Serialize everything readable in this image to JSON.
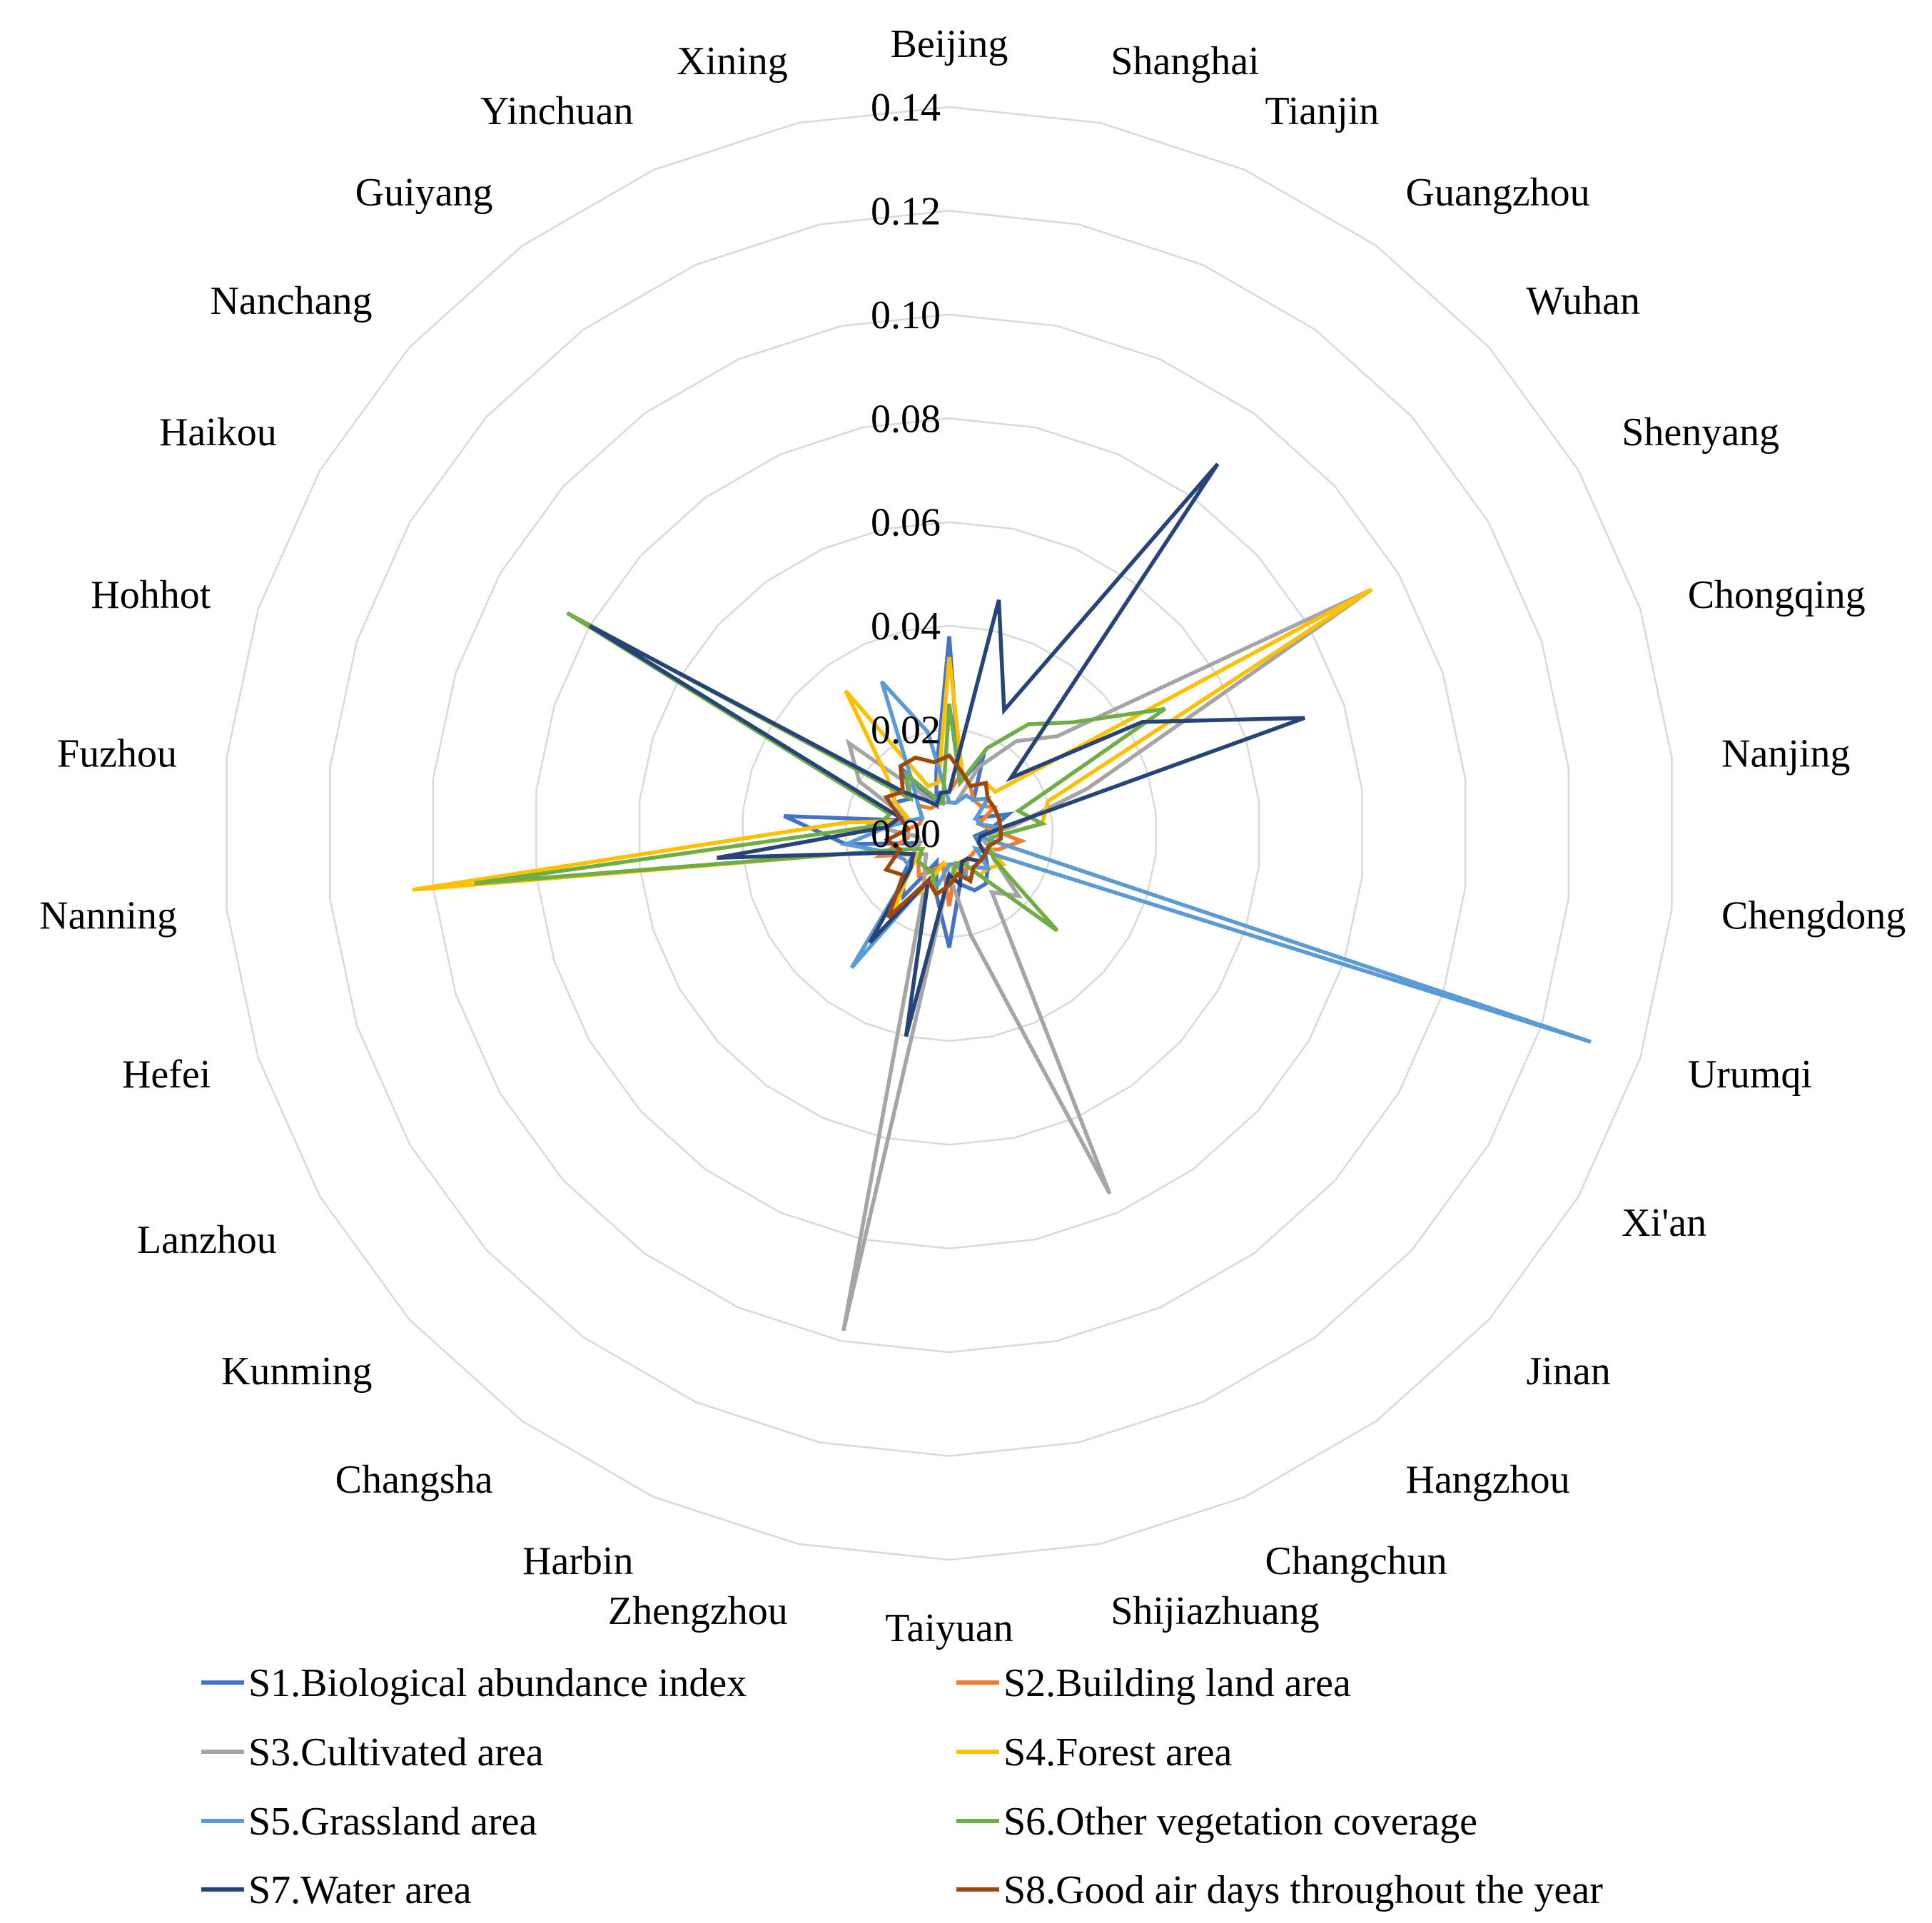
{
  "chart_data": {
    "type": "radar",
    "title": "",
    "r_range": [
      0,
      0.14
    ],
    "r_ticks": [
      "0.00",
      "0.02",
      "0.04",
      "0.06",
      "0.08",
      "0.10",
      "0.12",
      "0.14"
    ],
    "grid": true,
    "legend_position": "bottom",
    "categories": [
      "Beijing",
      "Shanghai",
      "Tianjin",
      "Guangzhou",
      "Wuhan",
      "Shenyang",
      "Chongqing",
      "Nanjing",
      "Chengdong",
      "Urumqi",
      "Xi'an",
      "Jinan",
      "Hangzhou",
      "Changchun",
      "Shijiazhuang",
      "Taiyuan",
      "Zhengzhou",
      "Harbin",
      "Changsha",
      "Kunming",
      "Lanzhou",
      "Hefei",
      "Nanning",
      "Fuzhou",
      "Hohhot",
      "Haikou",
      "Nanchang",
      "Guiyang",
      "Yinchuan",
      "Xining"
    ],
    "series": [
      {
        "name": "S1.Biological abundance index",
        "color": "#4472C4",
        "values": [
          0.038,
          0.01,
          0.016,
          0.008,
          0.01,
          0.006,
          0.012,
          0.008,
          0.005,
          0.006,
          0.008,
          0.01,
          0.012,
          0.012,
          0.01,
          0.022,
          0.012,
          0.006,
          0.015,
          0.012,
          0.008,
          0.006,
          0.02,
          0.032,
          0.008,
          0.012,
          0.01,
          0.015,
          0.006,
          0.012
        ]
      },
      {
        "name": "S2.Building land area",
        "color": "#ED7D31",
        "values": [
          0.008,
          0.012,
          0.01,
          0.008,
          0.008,
          0.01,
          0.006,
          0.008,
          0.014,
          0.01,
          0.006,
          0.006,
          0.006,
          0.008,
          0.006,
          0.014,
          0.006,
          0.008,
          0.01,
          0.008,
          0.008,
          0.014,
          0.008,
          0.008,
          0.006,
          0.006,
          0.008,
          0.006,
          0.006,
          0.008
        ]
      },
      {
        "name": "S3.Cultivated area",
        "color": "#A5A5A5",
        "values": [
          0.006,
          0.006,
          0.014,
          0.022,
          0.028,
          0.094,
          0.028,
          0.012,
          0.006,
          0.008,
          0.01,
          0.018,
          0.014,
          0.076,
          0.02,
          0.008,
          0.098,
          0.012,
          0.008,
          0.006,
          0.008,
          0.006,
          0.006,
          0.016,
          0.008,
          0.02,
          0.026,
          0.01,
          0.006,
          0.006
        ]
      },
      {
        "name": "S4.Forest area",
        "color": "#FFC000",
        "values": [
          0.034,
          0.012,
          0.01,
          0.012,
          0.012,
          0.094,
          0.02,
          0.018,
          0.008,
          0.008,
          0.012,
          0.01,
          0.01,
          0.006,
          0.008,
          0.006,
          0.006,
          0.012,
          0.018,
          0.01,
          0.006,
          0.01,
          0.104,
          0.02,
          0.008,
          0.012,
          0.016,
          0.034,
          0.01,
          0.01
        ]
      },
      {
        "name": "S5.Grassland area",
        "color": "#5B9BD5",
        "values": [
          0.006,
          0.006,
          0.008,
          0.008,
          0.01,
          0.006,
          0.006,
          0.01,
          0.006,
          0.13,
          0.006,
          0.01,
          0.008,
          0.01,
          0.006,
          0.006,
          0.01,
          0.01,
          0.032,
          0.01,
          0.01,
          0.012,
          0.02,
          0.012,
          0.008,
          0.006,
          0.008,
          0.012,
          0.032,
          0.02
        ]
      },
      {
        "name": "S6.Other vegetation coverage",
        "color": "#70AD47",
        "values": [
          0.025,
          0.01,
          0.018,
          0.026,
          0.032,
          0.048,
          0.014,
          0.018,
          0.008,
          0.008,
          0.01,
          0.028,
          0.01,
          0.006,
          0.006,
          0.01,
          0.012,
          0.008,
          0.008,
          0.008,
          0.006,
          0.01,
          0.092,
          0.014,
          0.012,
          0.085,
          0.01,
          0.014,
          0.008,
          0.006
        ]
      },
      {
        "name": "S7.Water area",
        "color": "#264478",
        "values": [
          0.008,
          0.046,
          0.026,
          0.088,
          0.016,
          0.043,
          0.072,
          0.01,
          0.006,
          0.006,
          0.008,
          0.008,
          0.006,
          0.006,
          0.01,
          0.008,
          0.04,
          0.01,
          0.026,
          0.01,
          0.008,
          0.012,
          0.045,
          0.012,
          0.01,
          0.08,
          0.012,
          0.008,
          0.006,
          0.008
        ]
      },
      {
        "name": "S8.Good air days throughout the year",
        "color": "#9E480E",
        "values": [
          0.015,
          0.012,
          0.01,
          0.012,
          0.01,
          0.01,
          0.01,
          0.01,
          0.01,
          0.008,
          0.008,
          0.008,
          0.008,
          0.01,
          0.008,
          0.01,
          0.012,
          0.01,
          0.02,
          0.012,
          0.014,
          0.01,
          0.012,
          0.008,
          0.01,
          0.014,
          0.012,
          0.016,
          0.016,
          0.014
        ]
      }
    ]
  }
}
